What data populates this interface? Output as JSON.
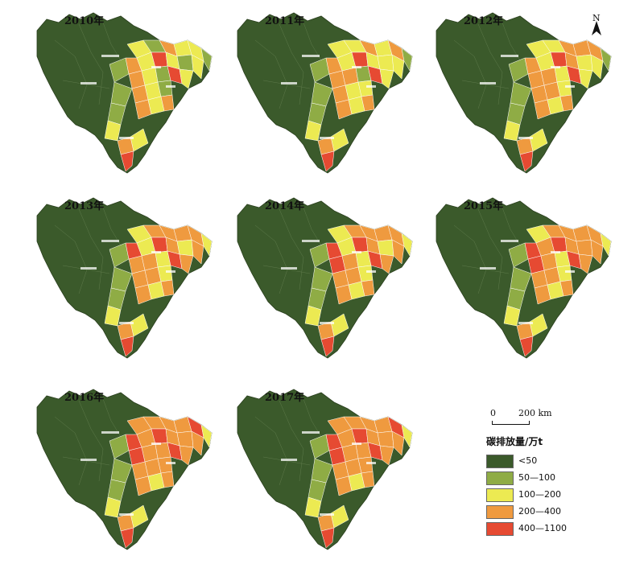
{
  "panels": [
    {
      "year_label": "2010年",
      "eastern_mix": [
        2,
        1,
        3,
        2,
        2,
        1,
        3,
        2,
        4,
        2,
        1,
        2,
        3,
        2,
        1,
        4,
        2,
        3,
        2,
        1
      ]
    },
    {
      "year_label": "2011年",
      "eastern_mix": [
        2,
        2,
        3,
        2,
        3,
        1,
        3,
        2,
        4,
        2,
        2,
        2,
        3,
        3,
        1,
        4,
        2,
        3,
        2,
        2
      ]
    },
    {
      "year_label": "2012年",
      "eastern_mix": [
        2,
        2,
        3,
        3,
        3,
        1,
        3,
        2,
        4,
        3,
        2,
        2,
        3,
        3,
        2,
        4,
        2,
        3,
        3,
        2
      ]
    },
    {
      "year_label": "2013年",
      "eastern_mix": [
        2,
        3,
        3,
        3,
        3,
        2,
        4,
        2,
        4,
        3,
        2,
        3,
        3,
        3,
        2,
        4,
        3,
        3,
        3,
        2
      ]
    },
    {
      "year_label": "2014年",
      "eastern_mix": [
        2,
        3,
        3,
        3,
        3,
        2,
        4,
        2,
        4,
        3,
        2,
        3,
        4,
        3,
        2,
        4,
        3,
        3,
        3,
        2
      ]
    },
    {
      "year_label": "2015年",
      "eastern_mix": [
        2,
        3,
        3,
        3,
        3,
        2,
        4,
        3,
        4,
        3,
        3,
        3,
        4,
        3,
        2,
        4,
        3,
        3,
        3,
        2
      ]
    },
    {
      "year_label": "2016年",
      "eastern_mix": [
        3,
        3,
        3,
        3,
        4,
        2,
        4,
        3,
        4,
        3,
        3,
        3,
        4,
        3,
        3,
        4,
        3,
        3,
        3,
        3
      ]
    },
    {
      "year_label": "2017年",
      "eastern_mix": [
        3,
        3,
        3,
        3,
        4,
        2,
        4,
        3,
        4,
        3,
        3,
        3,
        4,
        3,
        3,
        4,
        3,
        3,
        3,
        3
      ]
    }
  ],
  "north_arrow": {
    "label": "N"
  },
  "scale_bar": {
    "zero_label": "0",
    "distance_label": "200 km"
  },
  "legend": {
    "title": "碳排放量/万t",
    "items": [
      {
        "label": "<50",
        "color": "#3b5a2b"
      },
      {
        "label": "50—100",
        "color": "#8fac45"
      },
      {
        "label": "100—200",
        "color": "#ecea52"
      },
      {
        "label": "200—400",
        "color": "#ef9a3f"
      },
      {
        "label": "400—1100",
        "color": "#e64a32"
      }
    ]
  }
}
